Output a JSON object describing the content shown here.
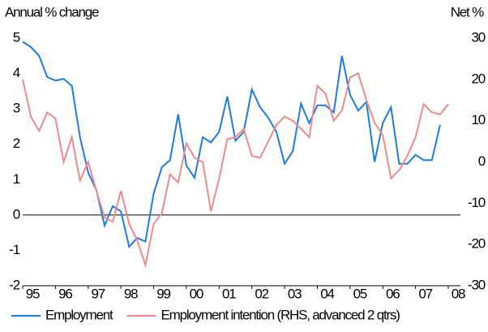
{
  "chart_data": {
    "type": "line",
    "y_label": "Annual % change",
    "y2_label": "Net %",
    "categories": [
      "95",
      null,
      null,
      null,
      "96",
      null,
      null,
      null,
      "97",
      null,
      null,
      null,
      "98",
      null,
      null,
      null,
      "99",
      null,
      null,
      null,
      "00",
      null,
      null,
      null,
      "01",
      null,
      null,
      null,
      "02",
      null,
      null,
      null,
      "03",
      null,
      null,
      null,
      "04",
      null,
      null,
      null,
      "05",
      null,
      null,
      null,
      "06",
      null,
      null,
      null,
      "07",
      null,
      null,
      null,
      "08"
    ],
    "ylim": [
      -2,
      5
    ],
    "yticks": [
      -2,
      -1,
      0,
      1,
      2,
      3,
      4,
      5
    ],
    "y2lim": [
      -30,
      30
    ],
    "y2ticks": [
      -30,
      -20,
      -10,
      0,
      10,
      20,
      30
    ],
    "grid": false,
    "legend": "bottom",
    "series": [
      {
        "name": "Employment",
        "color": "#1e7be0",
        "values": [
          4.9,
          4.75,
          4.5,
          3.9,
          3.8,
          3.85,
          3.65,
          2.2,
          1.2,
          0.7,
          -0.3,
          0.25,
          0.1,
          -0.9,
          -0.65,
          -0.75,
          0.6,
          1.35,
          1.55,
          2.85,
          1.4,
          1.05,
          2.2,
          2.05,
          2.35,
          3.35,
          2.1,
          2.35,
          3.55,
          3.05,
          2.75,
          2.35,
          1.45,
          1.8,
          3.15,
          2.6,
          3.1,
          3.1,
          2.9,
          4.5,
          3.4,
          2.95,
          3.2,
          1.5,
          2.6,
          3.05,
          1.45,
          1.45,
          1.7,
          1.55,
          1.55,
          2.55,
          null
        ]
      },
      {
        "name": "Employment intention (RHS, advanced 2 qtrs)",
        "color": "#f08a8a",
        "axis": "y2",
        "values": [
          20,
          11,
          7.5,
          12,
          10.5,
          0,
          6,
          -4.5,
          0,
          -7,
          -13.5,
          -14.5,
          -7,
          -15,
          -19,
          -25,
          -15,
          -12.5,
          -3,
          -5,
          4.5,
          1,
          0,
          -12,
          -4,
          5.5,
          6,
          8,
          1.5,
          1,
          5,
          9,
          11,
          10,
          8,
          6,
          18.5,
          16.5,
          10,
          12.5,
          20.5,
          21.5,
          15,
          9.5,
          6.5,
          -4,
          -2,
          1.5,
          6,
          14,
          12,
          11.5,
          14
        ]
      }
    ]
  }
}
